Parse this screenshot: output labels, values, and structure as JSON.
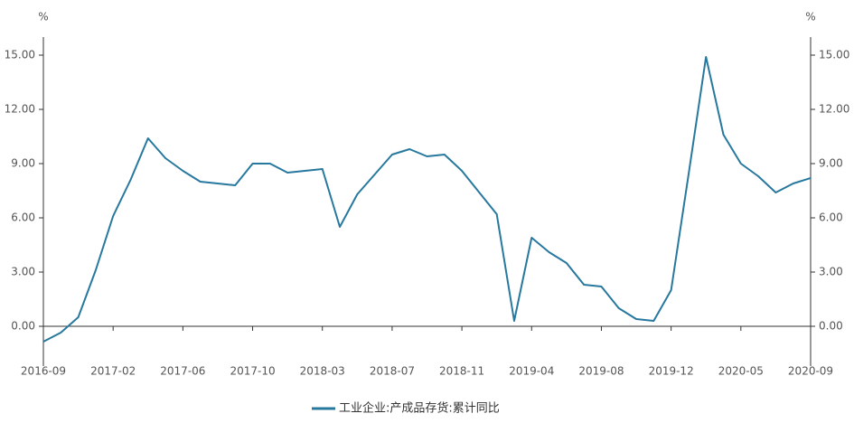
{
  "chart_data": {
    "type": "line",
    "y_unit": "%",
    "y2_unit": "%",
    "categories": [
      "2016-09",
      null,
      null,
      null,
      "2017-02",
      null,
      null,
      null,
      "2017-06",
      null,
      null,
      null,
      "2017-10",
      null,
      null,
      null,
      "2018-03",
      null,
      null,
      null,
      "2018-07",
      null,
      null,
      null,
      "2018-11",
      null,
      null,
      null,
      "2019-04",
      null,
      null,
      null,
      "2019-08",
      null,
      null,
      null,
      "2019-12",
      null,
      null,
      null,
      "2020-05",
      null,
      null,
      null,
      "2020-09"
    ],
    "series": [
      {
        "name": "工业企业:产成品存货:累计同比",
        "color": "#27789e",
        "values": [
          -0.85,
          -0.35,
          0.5,
          3.1,
          6.1,
          8.1,
          10.4,
          9.3,
          8.6,
          8.0,
          7.9,
          7.8,
          9.0,
          9.0,
          8.5,
          8.6,
          8.7,
          5.5,
          7.3,
          8.4,
          9.5,
          9.8,
          9.4,
          9.5,
          8.6,
          7.4,
          6.2,
          0.3,
          4.9,
          4.1,
          3.5,
          2.3,
          2.2,
          1.0,
          0.4,
          0.3,
          2.0,
          8.4,
          14.9,
          10.6,
          9.0,
          8.3,
          7.4,
          7.9,
          8.2
        ]
      }
    ],
    "ylim": [
      -2,
      16
    ],
    "yticks": [
      {
        "value": 0,
        "label": "0.00"
      },
      {
        "value": 3,
        "label": "3.00"
      },
      {
        "value": 6,
        "label": "6.00"
      },
      {
        "value": 9,
        "label": "9.00"
      },
      {
        "value": 12,
        "label": "12.00"
      },
      {
        "value": 15,
        "label": "15.00"
      }
    ],
    "y2lim": [
      -2,
      16
    ],
    "y2ticks": [
      {
        "value": 0,
        "label": "0.00"
      },
      {
        "value": 3,
        "label": "3.00"
      },
      {
        "value": 6,
        "label": "6.00"
      },
      {
        "value": 9,
        "label": "9.00"
      },
      {
        "value": 12,
        "label": "12.00"
      },
      {
        "value": 15,
        "label": "15.00"
      }
    ],
    "grid": false,
    "legend": "bottom"
  }
}
